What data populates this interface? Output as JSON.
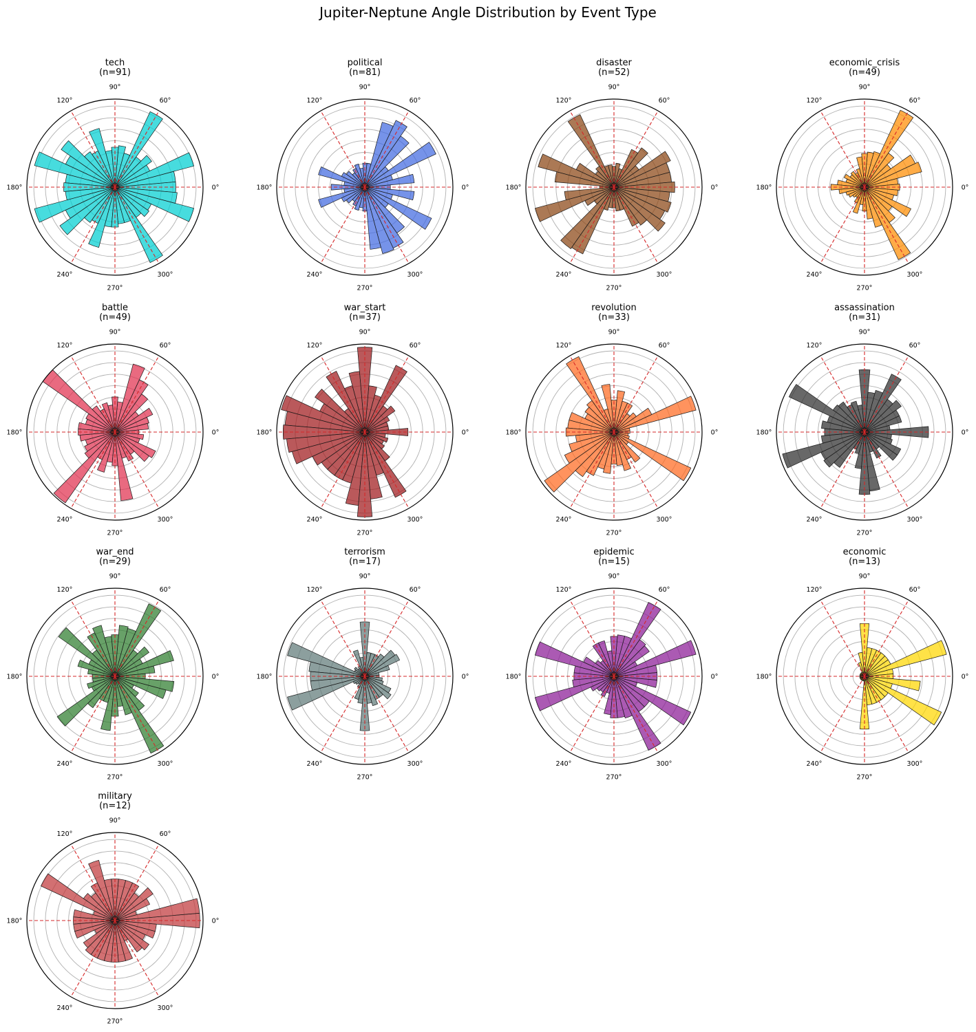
{
  "figure_title": "Jupiter-Neptune Angle Distribution by Event Type",
  "angle_ticks": [
    "0°",
    "60°",
    "90°",
    "120°",
    "180°",
    "240°",
    "270°",
    "300°"
  ],
  "reference_lines_color": "#d62728",
  "chart_data": [
    {
      "type": "polar-bar",
      "name": "tech",
      "n_label": "(n=91)",
      "n": 91,
      "color": "#00CED1",
      "radial_max": 5.5,
      "angles_deg": [
        0,
        10,
        20,
        30,
        40,
        50,
        60,
        70,
        80,
        90,
        100,
        110,
        120,
        130,
        140,
        150,
        160,
        170,
        180,
        190,
        200,
        210,
        220,
        230,
        240,
        250,
        260,
        270,
        280,
        290,
        300,
        310,
        320,
        330,
        340,
        350
      ],
      "values": [
        3.8,
        3.8,
        5.1,
        2.4,
        2.8,
        2.3,
        5.2,
        2.2,
        2.6,
        2.5,
        2.3,
        3.8,
        2.5,
        2.7,
        4.1,
        3.4,
        5.2,
        3.1,
        3.2,
        3.1,
        5.2,
        3.4,
        4.2,
        2.7,
        2.5,
        3.9,
        2.5,
        2.5,
        2.3,
        2.3,
        5.2,
        2.3,
        2.6,
        2.5,
        5.1,
        3.9
      ]
    },
    {
      "type": "polar-bar",
      "name": "political",
      "n_label": "(n=81)",
      "n": 81,
      "color": "#4169E1",
      "radial_max": 5.5,
      "angles_deg": [
        0,
        10,
        20,
        30,
        40,
        50,
        60,
        70,
        80,
        90,
        100,
        110,
        120,
        130,
        140,
        150,
        160,
        170,
        180,
        190,
        200,
        210,
        220,
        230,
        240,
        250,
        260,
        270,
        280,
        290,
        300,
        310,
        320,
        330,
        340,
        350
      ],
      "values": [
        1.6,
        3.1,
        1.8,
        4.9,
        1.8,
        3.9,
        4.6,
        4.2,
        1.5,
        1.5,
        1.2,
        1.5,
        1.3,
        1.1,
        1.4,
        1.6,
        3.0,
        1.3,
        2.1,
        1.3,
        3.0,
        1.6,
        1.4,
        1.1,
        1.3,
        1.5,
        1.3,
        1.5,
        3.9,
        4.3,
        4.2,
        3.5,
        1.8,
        4.6,
        1.8,
        3.1
      ]
    },
    {
      "type": "polar-bar",
      "name": "disaster",
      "n_label": "(n=52)",
      "n": 52,
      "color": "#8B4513",
      "radial_max": 5.5,
      "angles_deg": [
        0,
        10,
        20,
        30,
        40,
        50,
        60,
        70,
        80,
        90,
        100,
        110,
        120,
        130,
        140,
        150,
        160,
        170,
        180,
        190,
        200,
        210,
        220,
        230,
        240,
        250,
        260,
        270,
        280,
        290,
        300,
        310,
        320,
        330,
        340,
        350
      ],
      "values": [
        3.8,
        3.6,
        3.6,
        3.9,
        1.9,
        3.0,
        2.6,
        1.2,
        1.5,
        1.3,
        1.4,
        1.4,
        5.0,
        1.6,
        1.4,
        2.6,
        4.9,
        3.7,
        0.9,
        3.1,
        5.1,
        2.0,
        1.5,
        4.7,
        4.6,
        1.5,
        1.3,
        1.3,
        1.5,
        1.5,
        2.7,
        2.9,
        3.9,
        3.5,
        3.7,
        3.5
      ]
    },
    {
      "type": "polar-bar",
      "name": "economic_crisis",
      "n_label": "(n=49)",
      "n": 49,
      "color": "#FF8C00",
      "radial_max": 5.5,
      "angles_deg": [
        0,
        10,
        20,
        30,
        40,
        50,
        60,
        70,
        80,
        90,
        100,
        110,
        120,
        130,
        140,
        150,
        160,
        170,
        180,
        190,
        200,
        210,
        220,
        230,
        240,
        250,
        260,
        270,
        280,
        290,
        300,
        310,
        320,
        330,
        340,
        350
      ],
      "values": [
        2.2,
        2.1,
        3.7,
        3.5,
        2.0,
        2.6,
        5.3,
        2.3,
        2.2,
        2.1,
        1.9,
        1.2,
        1.0,
        1.2,
        1.1,
        1.4,
        1.2,
        1.7,
        2.1,
        1.6,
        1.2,
        1.1,
        0.9,
        0.8,
        1.1,
        1.7,
        1.1,
        1.5,
        2.0,
        2.6,
        5.0,
        2.7,
        2.1,
        3.2,
        1.9,
        2.1
      ]
    },
    {
      "type": "polar-bar",
      "name": "battle",
      "n_label": "(n=49)",
      "n": 49,
      "color": "#E0304F",
      "radial_max": 5.5,
      "angles_deg": [
        0,
        10,
        20,
        30,
        40,
        50,
        60,
        70,
        80,
        90,
        100,
        110,
        120,
        130,
        140,
        150,
        160,
        170,
        180,
        190,
        200,
        210,
        220,
        230,
        240,
        250,
        260,
        270,
        280,
        290,
        300,
        310,
        320,
        330,
        340,
        350
      ],
      "values": [
        1.5,
        2.1,
        2.2,
        2.6,
        1.8,
        2.9,
        3.6,
        4.4,
        1.9,
        2.2,
        1.7,
        1.9,
        1.6,
        2.0,
        5.5,
        2.0,
        1.9,
        2.3,
        2.3,
        2.2,
        1.9,
        2.1,
        2.3,
        5.4,
        1.9,
        2.6,
        1.9,
        2.1,
        4.3,
        1.7,
        2.0,
        1.7,
        2.6,
        2.8,
        1.6,
        1.8
      ]
    },
    {
      "type": "polar-bar",
      "name": "war_start",
      "n_label": "(n=37)",
      "n": 37,
      "color": "#A0191C",
      "radial_max": 5.5,
      "angles_deg": [
        0,
        10,
        20,
        30,
        40,
        50,
        60,
        70,
        80,
        90,
        100,
        110,
        120,
        130,
        140,
        150,
        160,
        170,
        180,
        190,
        200,
        210,
        220,
        230,
        240,
        250,
        260,
        270,
        280,
        290,
        300,
        310,
        320,
        330,
        340,
        350
      ],
      "values": [
        2.7,
        1.5,
        1.5,
        1.7,
        2.3,
        2.0,
        4.6,
        2.4,
        2.9,
        5.3,
        3.8,
        3.0,
        4.2,
        1.8,
        3.8,
        3.1,
        5.4,
        5.0,
        5.1,
        4.9,
        4.7,
        3.6,
        3.3,
        3.3,
        3.3,
        3.3,
        4.6,
        5.3,
        4.2,
        2.8,
        4.5,
        2.2,
        1.5,
        1.3,
        1.5,
        1.3
      ]
    },
    {
      "type": "polar-bar",
      "name": "revolution",
      "n_label": "(n=33)",
      "n": 33,
      "color": "#FF6A20",
      "radial_max": 5.5,
      "angles_deg": [
        0,
        10,
        20,
        30,
        40,
        50,
        60,
        70,
        80,
        90,
        100,
        110,
        120,
        130,
        140,
        150,
        160,
        170,
        180,
        190,
        200,
        210,
        220,
        230,
        240,
        250,
        260,
        270,
        280,
        290,
        300,
        310,
        320,
        330,
        340,
        350
      ],
      "values": [
        1.0,
        1.0,
        5.3,
        2.6,
        1.7,
        1.4,
        2.0,
        2.0,
        2.6,
        2.0,
        3.0,
        1.5,
        5.2,
        2.4,
        2.2,
        2.0,
        2.9,
        2.9,
        3.0,
        2.4,
        2.9,
        3.4,
        5.3,
        3.4,
        3.0,
        2.4,
        2.6,
        2.0,
        2.1,
        2.5,
        1.9,
        2.3,
        1.1,
        5.3,
        1.0,
        0.9
      ]
    },
    {
      "type": "polar-bar",
      "name": "assassination",
      "n_label": "(n=31)",
      "n": 31,
      "color": "#2E2E2E",
      "radial_max": 5.5,
      "angles_deg": [
        0,
        10,
        20,
        30,
        40,
        50,
        60,
        70,
        80,
        90,
        100,
        110,
        120,
        130,
        140,
        150,
        160,
        170,
        180,
        190,
        200,
        210,
        220,
        230,
        240,
        250,
        260,
        270,
        280,
        290,
        300,
        310,
        320,
        330,
        340,
        350
      ],
      "values": [
        4.0,
        1.6,
        2.4,
        2.4,
        2.8,
        2.5,
        4.0,
        2.7,
        2.5,
        3.9,
        1.7,
        2.0,
        1.9,
        2.3,
        2.4,
        5.2,
        2.4,
        2.7,
        2.5,
        2.7,
        5.3,
        3.0,
        3.1,
        2.7,
        1.2,
        1.4,
        2.3,
        3.9,
        3.7,
        1.3,
        1.8,
        1.3,
        2.5,
        2.5,
        1.8,
        1.7
      ]
    },
    {
      "type": "polar-bar",
      "name": "war_end",
      "n_label": "(n=29)",
      "n": 29,
      "color": "#2E7D2E",
      "radial_max": 5.5,
      "angles_deg": [
        0,
        10,
        20,
        30,
        40,
        50,
        60,
        70,
        80,
        90,
        100,
        110,
        120,
        130,
        140,
        150,
        160,
        170,
        180,
        190,
        200,
        210,
        220,
        230,
        240,
        250,
        260,
        270,
        280,
        290,
        300,
        310,
        320,
        330,
        340,
        350
      ],
      "values": [
        1.9,
        2.5,
        3.8,
        1.9,
        2.6,
        2.0,
        5.0,
        3.1,
        3.2,
        2.6,
        2.5,
        3.3,
        3.0,
        2.0,
        4.3,
        1.8,
        2.4,
        1.7,
        1.4,
        1.4,
        1.8,
        1.6,
        4.4,
        2.4,
        1.7,
        1.7,
        3.4,
        2.5,
        1.9,
        2.5,
        5.3,
        2.6,
        1.8,
        1.3,
        3.3,
        3.7
      ]
    },
    {
      "type": "polar-bar",
      "name": "terrorism",
      "n_label": "(n=17)",
      "n": 17,
      "color": "#5F7A78",
      "radial_max": 5.5,
      "angles_deg": [
        0,
        10,
        20,
        30,
        40,
        50,
        60,
        70,
        80,
        90,
        100,
        110,
        120,
        130,
        140,
        150,
        160,
        170,
        180,
        190,
        200,
        210,
        220,
        230,
        240,
        250,
        260,
        270,
        280,
        290,
        300,
        310,
        320,
        330,
        340,
        350
      ],
      "values": [
        0.9,
        0.9,
        1.6,
        2.4,
        2.3,
        1.7,
        1.5,
        1.5,
        1.5,
        3.4,
        1.2,
        1.7,
        0.7,
        0.6,
        0.8,
        0.7,
        5.0,
        3.5,
        3.4,
        3.4,
        5.0,
        0.8,
        0.7,
        0.6,
        0.8,
        1.5,
        1.7,
        3.4,
        1.7,
        1.9,
        1.6,
        1.6,
        2.0,
        1.8,
        1.2,
        1.1
      ]
    },
    {
      "type": "polar-bar",
      "name": "epidemic",
      "n_label": "(n=15)",
      "n": 15,
      "color": "#8B1A96",
      "radial_max": 5.5,
      "angles_deg": [
        0,
        10,
        20,
        30,
        40,
        50,
        60,
        70,
        80,
        90,
        100,
        110,
        120,
        130,
        140,
        150,
        160,
        170,
        180,
        190,
        200,
        210,
        220,
        230,
        240,
        250,
        260,
        270,
        280,
        290,
        300,
        310,
        320,
        330,
        340,
        350
      ],
      "values": [
        2.7,
        2.7,
        5.3,
        1.6,
        2.7,
        2.8,
        5.1,
        2.6,
        2.6,
        2.5,
        1.6,
        2.3,
        2.3,
        1.2,
        1.4,
        2.1,
        5.1,
        2.5,
        2.5,
        2.6,
        5.1,
        1.6,
        1.3,
        1.2,
        1.4,
        1.1,
        2.4,
        2.6,
        2.6,
        2.7,
        5.1,
        2.7,
        2.7,
        5.3,
        1.5,
        2.7
      ]
    },
    {
      "type": "polar-bar",
      "name": "economic",
      "n_label": "(n=13)",
      "n": 13,
      "color": "#FFD700",
      "radial_max": 5.5,
      "angles_deg": [
        0,
        10,
        20,
        30,
        40,
        50,
        60,
        70,
        80,
        90,
        100,
        110,
        120,
        130,
        140,
        150,
        160,
        170,
        180,
        190,
        200,
        210,
        220,
        230,
        240,
        250,
        260,
        270,
        280,
        290,
        300,
        310,
        320,
        330,
        340,
        350
      ],
      "values": [
        1.8,
        1.8,
        5.3,
        1.8,
        1.8,
        1.8,
        1.8,
        1.8,
        1.8,
        3.3,
        1.5,
        0.9,
        0.3,
        0.3,
        0.3,
        0.3,
        0.3,
        0.3,
        0.3,
        0.3,
        0.3,
        0.3,
        0.3,
        0.3,
        0.3,
        0.3,
        0.3,
        3.3,
        1.8,
        1.8,
        1.8,
        1.8,
        1.8,
        5.3,
        1.8,
        3.5
      ]
    },
    {
      "type": "polar-bar",
      "name": "military",
      "n_label": "(n=12)",
      "n": 12,
      "color": "#C0393B",
      "radial_max": 5.5,
      "angles_deg": [
        0,
        10,
        20,
        30,
        40,
        50,
        60,
        70,
        80,
        90,
        100,
        110,
        120,
        130,
        140,
        150,
        160,
        170,
        180,
        190,
        200,
        210,
        220,
        230,
        240,
        250,
        260,
        270,
        280,
        290,
        300,
        310,
        320,
        330,
        340,
        350
      ],
      "values": [
        5.3,
        5.3,
        1.4,
        2.4,
        2.9,
        2.1,
        2.6,
        2.6,
        2.6,
        2.6,
        2.6,
        3.9,
        2.6,
        2.1,
        2.4,
        5.1,
        1.4,
        2.6,
        2.6,
        2.6,
        2.6,
        1.4,
        2.4,
        2.6,
        2.6,
        2.6,
        2.6,
        2.6,
        2.6,
        2.6,
        1.4,
        2.4,
        2.6,
        2.1,
        2.6,
        2.6
      ]
    }
  ]
}
